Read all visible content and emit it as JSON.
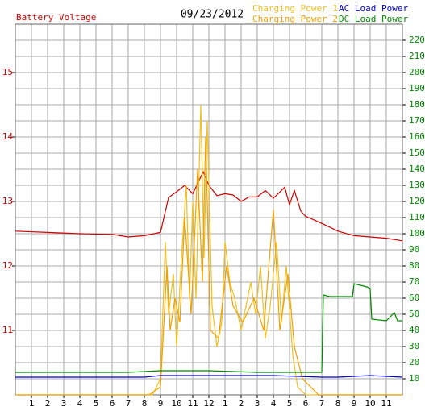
{
  "chart_data": {
    "type": "line",
    "title": "09/23/2012",
    "xlim": [
      0,
      24
    ],
    "xticks": [
      1,
      2,
      3,
      4,
      5,
      6,
      7,
      8,
      9,
      10,
      11,
      12,
      {
        "value": 13,
        "label": "1"
      },
      {
        "value": 14,
        "label": "2"
      },
      {
        "value": 15,
        "label": "3"
      },
      {
        "value": 16,
        "label": "4"
      },
      {
        "value": 17,
        "label": "5"
      },
      {
        "value": 18,
        "label": "6"
      },
      {
        "value": 19,
        "label": "7"
      },
      {
        "value": 20,
        "label": "8"
      },
      {
        "value": 21,
        "label": "9"
      },
      {
        "value": 22,
        "label": "10"
      },
      {
        "value": 23,
        "label": "11"
      }
    ],
    "ylim": [
      10,
      15.75
    ],
    "yticks": [
      11,
      12,
      13,
      14,
      15
    ],
    "y2lim": [
      0,
      230
    ],
    "y2ticks": [
      10,
      20,
      30,
      40,
      50,
      60,
      70,
      80,
      90,
      100,
      110,
      120,
      130,
      140,
      150,
      160,
      170,
      180,
      190,
      200,
      210,
      220
    ],
    "grid": true,
    "series": [
      {
        "name": "Battery Voltage",
        "color": "#cc0000",
        "x": [
          0,
          2,
          4,
          6,
          7,
          8,
          9,
          9.5,
          10,
          10.5,
          11,
          11.65,
          12,
          12.5,
          13,
          13.5,
          14,
          14.5,
          15,
          15.5,
          16,
          16.7,
          17,
          17.3,
          17.7,
          18,
          19,
          20,
          21,
          22,
          23,
          24
        ],
        "values": [
          12.54,
          12.52,
          12.5,
          12.49,
          12.45,
          12.47,
          12.52,
          13.06,
          13.15,
          13.25,
          13.12,
          13.46,
          13.25,
          13.09,
          13.12,
          13.1,
          13.0,
          13.07,
          13.07,
          13.17,
          13.05,
          13.22,
          12.95,
          13.17,
          12.85,
          12.77,
          12.66,
          12.54,
          12.47,
          12.45,
          12.43,
          12.39
        ]
      },
      {
        "name": "Charging Power 1",
        "color": "#f0c020",
        "axis": "y2",
        "x": [
          0,
          8,
          8.5,
          9,
          9.3,
          9.5,
          9.8,
          10,
          10.3,
          10.6,
          10.8,
          11,
          11.2,
          11.5,
          11.7,
          11.9,
          12.2,
          12.5,
          12.8,
          13,
          13.3,
          13.6,
          14,
          14.3,
          14.6,
          14.9,
          15.2,
          15.5,
          15.8,
          16.2,
          16.5,
          16.8,
          17.2,
          17.5,
          18,
          24
        ],
        "values": [
          0,
          0,
          0,
          10,
          95,
          50,
          75,
          30,
          85,
          130,
          60,
          120,
          60,
          180,
          85,
          170,
          55,
          30,
          45,
          95,
          70,
          60,
          40,
          55,
          70,
          50,
          80,
          35,
          55,
          95,
          45,
          80,
          25,
          5,
          0,
          0
        ]
      },
      {
        "name": "Charging Power 2",
        "color": "#f0a000",
        "axis": "y2",
        "x": [
          0,
          8.3,
          9,
          9.4,
          9.6,
          9.9,
          10.2,
          10.5,
          10.9,
          11.3,
          11.6,
          11.8,
          12.1,
          12.6,
          13.1,
          13.5,
          14.1,
          14.8,
          15.4,
          16,
          16.4,
          16.9,
          17.3,
          17.8,
          18.3,
          18.8,
          24
        ],
        "values": [
          0,
          0,
          5,
          80,
          40,
          60,
          45,
          110,
          50,
          140,
          70,
          160,
          40,
          35,
          80,
          55,
          45,
          60,
          40,
          115,
          40,
          75,
          30,
          10,
          5,
          0,
          0
        ]
      },
      {
        "name": "AC Load Power",
        "color": "#0000cc",
        "axis": "y2",
        "x": [
          0,
          4,
          8,
          9,
          12,
          16,
          19,
          20,
          22,
          24
        ],
        "values": [
          11,
          11,
          11,
          12,
          12,
          12,
          11,
          11,
          12,
          11
        ]
      },
      {
        "name": "DC Load Power",
        "color": "#008800",
        "axis": "y2",
        "x": [
          0,
          3,
          7,
          9,
          12,
          15,
          18,
          19,
          19.1,
          19.5,
          20.9,
          21,
          21.8,
          22,
          22.1,
          23,
          23.5,
          23.7,
          24
        ],
        "values": [
          14,
          14,
          14,
          15,
          15,
          14,
          14,
          14,
          62,
          61,
          61,
          69,
          67,
          66,
          47,
          46,
          51,
          46,
          46
        ]
      }
    ]
  }
}
